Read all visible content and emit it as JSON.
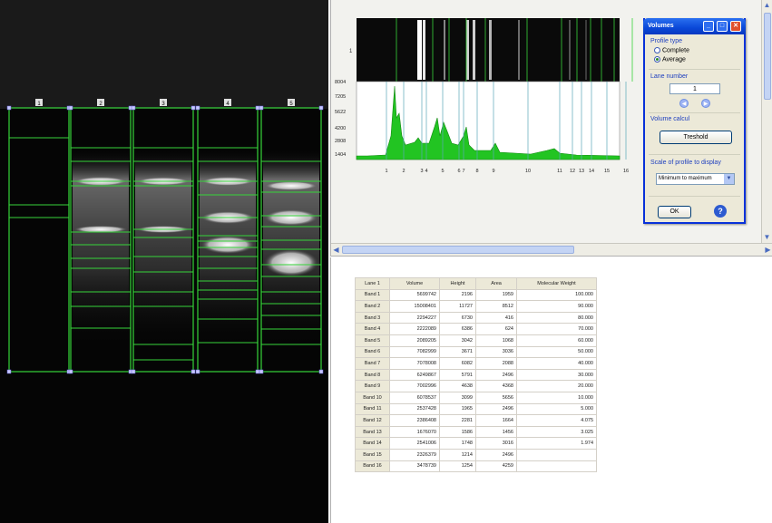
{
  "gel": {
    "lane_numbers": [
      "1",
      "2",
      "3",
      "4",
      "5"
    ]
  },
  "profile": {
    "y_ticks": [
      "8004",
      "7205",
      "5622",
      "4200",
      "2808",
      "1404"
    ],
    "strip_label": "1",
    "peak_labels": [
      "1",
      "2",
      "3",
      "4",
      "5",
      "6",
      "7",
      "8",
      "9",
      "10",
      "11",
      "12",
      "13",
      "14",
      "15",
      "16"
    ]
  },
  "dialog": {
    "title": "Volumes",
    "profile_type_label": "Profile type",
    "options": [
      "Complete",
      "Average"
    ],
    "selected_option": "Average",
    "lane_number_label": "Lane number",
    "lane_number_value": "1",
    "volume_calcul_label": "Volume calcul",
    "threshold_button": "Treshold",
    "scale_label": "Scale of profile to display",
    "scale_value": "Minimum to maximum",
    "ok_button": "OK",
    "help_icon": "?"
  },
  "table": {
    "headers": [
      "Lane 1",
      "Volume",
      "Height",
      "Area",
      "Molecular Weight"
    ],
    "rows": [
      [
        "Band 1",
        "5699742",
        "2196",
        "1959",
        "100.000"
      ],
      [
        "Band 2",
        "15008401",
        "11727",
        "8512",
        "90.000"
      ],
      [
        "Band 3",
        "2294227",
        "6730",
        "416",
        "80.000"
      ],
      [
        "Band 4",
        "2222089",
        "6386",
        "624",
        "70.000"
      ],
      [
        "Band 5",
        "2089205",
        "3042",
        "1068",
        "60.000"
      ],
      [
        "Band 6",
        "7082999",
        "3671",
        "3036",
        "50.000"
      ],
      [
        "Band 7",
        "7078008",
        "6082",
        "2088",
        "40.000"
      ],
      [
        "Band 8",
        "6249867",
        "5791",
        "2496",
        "30.000"
      ],
      [
        "Band 9",
        "7002996",
        "4638",
        "4368",
        "20.000"
      ],
      [
        "Band 10",
        "6078537",
        "3099",
        "5656",
        "10.000"
      ],
      [
        "Band 11",
        "2537428",
        "1965",
        "2496",
        "5.000"
      ],
      [
        "Band 12",
        "2386408",
        "2281",
        "1664",
        "4.075"
      ],
      [
        "Band 13",
        "1676070",
        "1586",
        "1456",
        "3.025"
      ],
      [
        "Band 14",
        "2541006",
        "1748",
        "3016",
        "1.974"
      ],
      [
        "Band 15",
        "2326379",
        "1214",
        "2496",
        ""
      ],
      [
        "Band 16",
        "3478739",
        "1254",
        "4259",
        ""
      ]
    ]
  },
  "colors": {
    "gel_green": "#36d43a",
    "profile_fill": "#22c422",
    "dialog_blue": "#0831d9"
  }
}
